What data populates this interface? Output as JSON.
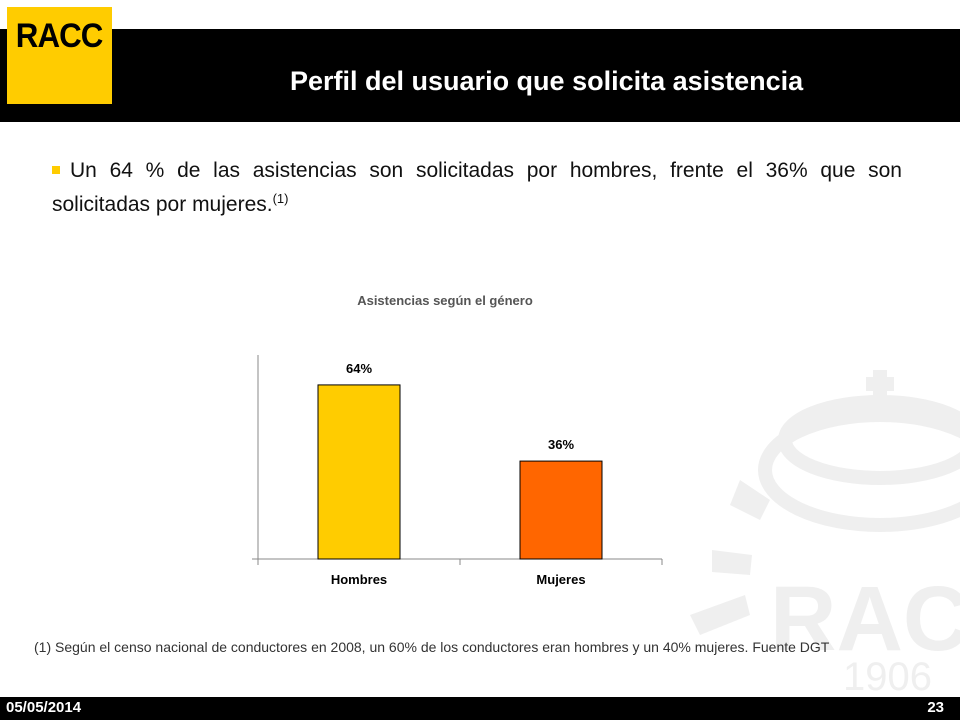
{
  "logo": {
    "text": "RACC"
  },
  "header": {
    "title": "Perfil del usuario que solicita asistencia"
  },
  "bullet": {
    "text": "Un 64 % de las asistencias son solicitadas por hombres, frente el 36% que son solicitadas por mujeres.",
    "sup": "(1)"
  },
  "chart_data": {
    "type": "bar",
    "title": "Asistencias según el género",
    "categories": [
      "Hombres",
      "Mujeres"
    ],
    "values": [
      64,
      36
    ],
    "data_labels": [
      "64%",
      "36%"
    ],
    "colors": [
      "#ffcc00",
      "#ff6600"
    ],
    "ylim": [
      0,
      75
    ],
    "grid": false
  },
  "watermark": {
    "text": "RACC",
    "year": "1906"
  },
  "footnote": {
    "text": "(1) Según el censo nacional de conductores en 2008, un 60% de los conductores eran hombres y un 40% mujeres. Fuente DGT"
  },
  "footer": {
    "date": "05/05/2014",
    "page": "23"
  }
}
